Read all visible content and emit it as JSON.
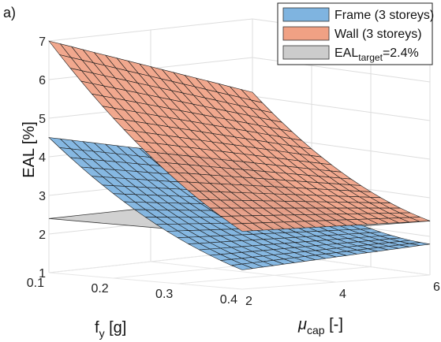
{
  "panel_label": "a)",
  "chart_data": {
    "type": "surface3d",
    "xlabel_main": "μ",
    "xlabel_sub": "cap",
    "xlabel_unit": " [-]",
    "ylabel_main": "f",
    "ylabel_sub": "y",
    "ylabel_unit": " [g]",
    "zlabel": "EAL [%]",
    "xlim": [
      2,
      6
    ],
    "ylim": [
      0.1,
      0.4
    ],
    "zlim": [
      1,
      7
    ],
    "xticks": [
      2,
      4,
      6
    ],
    "yticks": [
      0.1,
      0.2,
      0.3,
      0.4
    ],
    "zticks": [
      1,
      2,
      3,
      4,
      5,
      6,
      7
    ],
    "x_tick_labels": [
      "2",
      "4",
      "6"
    ],
    "y_tick_labels": [
      "0.1",
      "0.2",
      "0.3",
      "0.4"
    ],
    "z_tick_labels": [
      "1",
      "2",
      "3",
      "4",
      "5",
      "6",
      "7"
    ],
    "grid": true,
    "legend_position": "top-right",
    "series": [
      {
        "name": "Frame (3 storeys)",
        "color": "#7fb4e0",
        "surface_corners_EAL": {
          "mu2_fy0.1": 4.5,
          "mu6_fy0.1": 3.3,
          "mu2_fy0.4": 1.5,
          "mu6_fy0.4": 1.8
        }
      },
      {
        "name": "Wall (3 storeys)",
        "color": "#f0a184",
        "surface_corners_EAL": {
          "mu2_fy0.1": 7.0,
          "mu6_fy0.1": 5.1,
          "mu2_fy0.4": 2.5,
          "mu6_fy0.4": 2.4
        }
      },
      {
        "name_main": "EAL",
        "name_sub": "target",
        "name_tail": "=2.4%",
        "color": "#cccccc",
        "constant_EAL": 2.4
      }
    ]
  }
}
